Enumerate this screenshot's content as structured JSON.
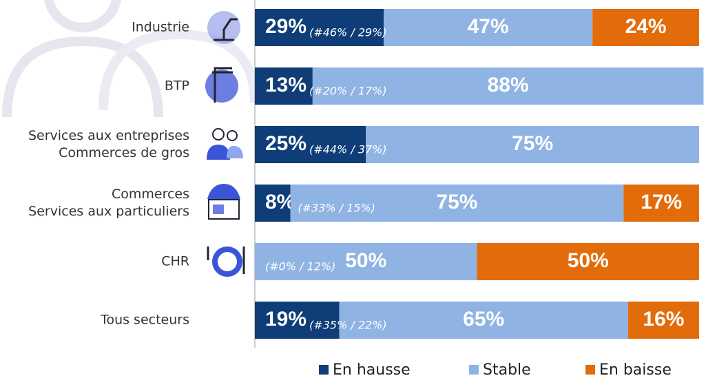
{
  "chart_data": {
    "type": "stacked-bar-horizontal",
    "categories": [
      [
        "Industrie"
      ],
      [
        "BTP"
      ],
      [
        "Services aux entreprises",
        "Commerces de gros"
      ],
      [
        "Commerces",
        "Services aux particuliers"
      ],
      [
        "CHR"
      ],
      [
        "Tous secteurs"
      ]
    ],
    "series": [
      {
        "name": "En hausse",
        "color": "#0e3d78",
        "values": [
          29,
          13,
          25,
          8,
          null,
          19
        ],
        "value_labels": [
          "29%",
          "13%",
          "25%",
          "8%",
          null,
          "19%"
        ]
      },
      {
        "name": "Stable",
        "color": "#8fb4e3",
        "values": [
          47,
          88,
          75,
          75,
          50,
          65
        ],
        "value_labels": [
          "47%",
          "88%",
          "75%",
          "75%",
          "50%",
          "65%"
        ]
      },
      {
        "name": "En baisse",
        "color": "#e36c0a",
        "values": [
          24,
          null,
          null,
          17,
          50,
          16
        ],
        "value_labels": [
          "24%",
          null,
          null,
          "17%",
          "50%",
          "16%"
        ]
      }
    ],
    "notes": [
      "(#46% / 29%)",
      "(#20% / 17%)",
      "(#44% / 37%)",
      "(#33% / 15%)",
      "(#0% / 12%)",
      "(#35% / 22%)"
    ],
    "xlim": [
      0,
      100
    ]
  }
}
